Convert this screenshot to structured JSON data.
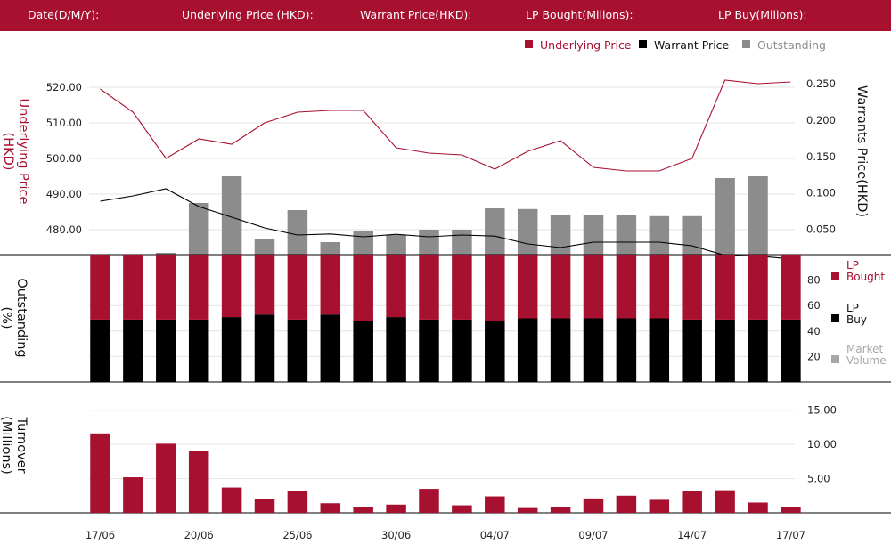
{
  "header": {
    "date_label": "Date(D/M/Y):",
    "underlying_label": "Underlying Price (HKD):",
    "warrant_label": "Warrant  Price(HKD):",
    "lp_bought_label": "LP Bought(Milions):",
    "lp_buy_label": "LP Buy(Milions):"
  },
  "colors": {
    "brand": "#a8102f",
    "warrant": "#000000",
    "outstanding": "#8c8c8c",
    "legend_grey": "#a8a8a8"
  },
  "chart_data": [
    {
      "type": "line",
      "title": "",
      "ylabel_left": "Underlying Price (HKD)",
      "ylabel_right": "Warrants  Price(HKD)",
      "left_ticks": [
        "480.00",
        "490.00",
        "500.00",
        "510.00",
        "520.00"
      ],
      "right_ticks": [
        "0.050",
        "0.100",
        "0.150",
        "0.200",
        "0.250"
      ],
      "ylim_left": [
        473,
        524
      ],
      "ylim_right": [
        0.015,
        0.265
      ],
      "legend": {
        "placement": "top-right",
        "items": [
          {
            "label": "Underlying Price",
            "color": "#a8102f"
          },
          {
            "label": "Warrant  Price",
            "color": "#000000"
          },
          {
            "label": "Outstanding",
            "color": "#8c8c8c"
          }
        ]
      },
      "series": [
        {
          "name": "Underlying Price",
          "axis": "left",
          "color": "#a8102f",
          "values": [
            519.5,
            513.0,
            500.0,
            505.5,
            504.0,
            510.0,
            513.0,
            513.5,
            513.5,
            503.0,
            501.5,
            501.0,
            497.0,
            502.0,
            505.0,
            497.5,
            496.5,
            496.5,
            500.0,
            522.0,
            521.0,
            521.5
          ]
        },
        {
          "name": "Warrant  Price",
          "axis": "left",
          "color": "#000000",
          "values": [
            488.0,
            489.5,
            491.5,
            486.5,
            483.5,
            480.5,
            478.5,
            478.8,
            478.0,
            478.7,
            478.0,
            478.5,
            478.2,
            476.0,
            475.0,
            476.5,
            476.5,
            476.5,
            475.5,
            472.8,
            472.6,
            471.8
          ]
        },
        {
          "name": "Outstanding",
          "axis": "left",
          "color": "#8c8c8c",
          "values": [
            473.0,
            473.0,
            473.5,
            487.5,
            495.0,
            477.5,
            485.5,
            476.5,
            479.5,
            478.5,
            480.0,
            480.0,
            486.0,
            485.8,
            484.0,
            484.0,
            484.0,
            483.8,
            483.8,
            494.5,
            495.0,
            473.0
          ]
        }
      ]
    },
    {
      "type": "bar",
      "ylabel": "Outstanding (%)",
      "ticks": [
        "20",
        "40",
        "60",
        "80"
      ],
      "ylim": [
        0,
        100
      ],
      "legend": [
        {
          "label": "LP Bought",
          "color": "#a8102f"
        },
        {
          "label": "LP Buy",
          "color": "#000000"
        },
        {
          "label": "Market Volume",
          "color": "#a8a8a8"
        }
      ],
      "series": [
        {
          "name": "LP Buy",
          "color": "#000000",
          "values": [
            49,
            49,
            49,
            49,
            51,
            53,
            49,
            53,
            48,
            51,
            49,
            49,
            48,
            50,
            50,
            50,
            50,
            50,
            49,
            49,
            49,
            49
          ]
        },
        {
          "name": "LP Bought",
          "color": "#a8102f",
          "values": [
            51,
            51,
            51,
            51,
            49,
            47,
            51,
            47,
            52,
            49,
            51,
            51,
            52,
            50,
            50,
            50,
            50,
            50,
            51,
            51,
            51,
            51
          ]
        },
        {
          "name": "Market Volume",
          "color": "#a8a8a8",
          "values": [
            0,
            0,
            0,
            0,
            2,
            0,
            0,
            0,
            0,
            1,
            0,
            0,
            0,
            0,
            0,
            0,
            0,
            0,
            0,
            0,
            0,
            0
          ]
        }
      ]
    },
    {
      "type": "bar",
      "ylabel": "Turnover (Millions)",
      "ticks": [
        "5.00",
        "10.00",
        "15.00"
      ],
      "ylim": [
        0,
        16
      ],
      "series": [
        {
          "name": "Turnover",
          "color": "#a8102f",
          "values": [
            11.6,
            5.2,
            10.1,
            9.1,
            3.7,
            2.0,
            3.2,
            1.4,
            0.8,
            1.2,
            3.5,
            1.1,
            2.4,
            0.7,
            0.9,
            2.1,
            2.5,
            1.9,
            3.2,
            3.3,
            1.5,
            0.9
          ]
        }
      ]
    }
  ],
  "x_tick_labels": [
    "17/06",
    "20/06",
    "25/06",
    "30/06",
    "04/07",
    "09/07",
    "14/07",
    "17/07"
  ]
}
